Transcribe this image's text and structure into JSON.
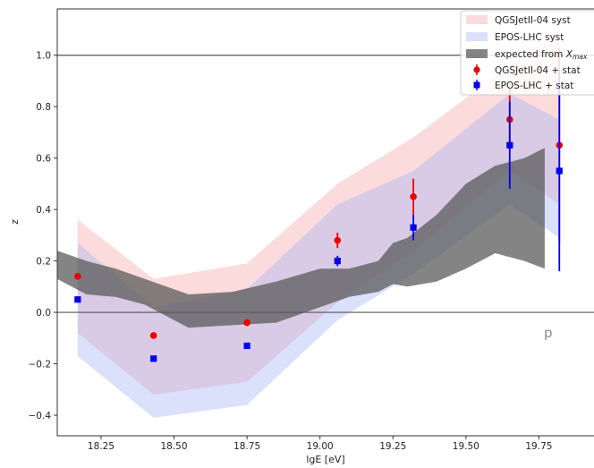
{
  "chart_data": {
    "type": "scatter",
    "xlabel": "lgE [eV]",
    "ylabel": "z",
    "xlim": [
      18.1,
      20.0
    ],
    "ylim": [
      -0.48,
      1.18
    ],
    "x_ticks": [
      "18.25",
      "18.50",
      "18.75",
      "19.00",
      "19.25",
      "19.50",
      "19.75"
    ],
    "y_ticks": [
      "−0.4",
      "−0.2",
      "0.0",
      "0.2",
      "0.4",
      "0.6",
      "0.8",
      "1.0"
    ],
    "grid": false,
    "legend": "top-right",
    "reference_lines": [
      1.0,
      0.0
    ],
    "annotation": "p",
    "bands": [
      {
        "name": "QGSJetII-04 syst",
        "color": "#f5aaaa",
        "x": [
          18.17,
          18.43,
          18.75,
          19.06,
          19.32,
          19.65,
          19.82
        ],
        "upper": [
          0.36,
          0.13,
          0.19,
          0.5,
          0.68,
          0.96,
          1.1
        ],
        "lower": [
          -0.08,
          -0.32,
          -0.27,
          0.04,
          0.24,
          0.55,
          0.42
        ]
      },
      {
        "name": "EPOS-LHC syst",
        "color": "#aab4f5",
        "x": [
          18.17,
          18.43,
          18.75,
          19.06,
          19.32,
          19.65,
          19.82
        ],
        "upper": [
          0.27,
          0.02,
          0.09,
          0.42,
          0.55,
          0.85,
          0.75
        ],
        "lower": [
          -0.17,
          -0.41,
          -0.36,
          -0.03,
          0.15,
          0.42,
          0.29
        ]
      },
      {
        "name": "expected from X_max",
        "label_text": "expected from ",
        "label_math": "X",
        "label_sub": "max",
        "color": "#555555",
        "x": [
          18.1,
          18.2,
          18.3,
          18.4,
          18.55,
          18.7,
          18.85,
          19.0,
          19.1,
          19.2,
          19.25,
          19.3,
          19.4,
          19.5,
          19.6,
          19.7,
          19.77
        ],
        "upper": [
          0.24,
          0.2,
          0.17,
          0.13,
          0.07,
          0.08,
          0.12,
          0.17,
          0.17,
          0.2,
          0.27,
          0.29,
          0.38,
          0.5,
          0.57,
          0.6,
          0.64
        ],
        "lower": [
          0.13,
          0.07,
          0.06,
          0.03,
          -0.06,
          -0.05,
          -0.04,
          0.02,
          0.06,
          0.08,
          0.11,
          0.1,
          0.12,
          0.17,
          0.23,
          0.2,
          0.17
        ]
      }
    ],
    "series": [
      {
        "name": "QGSJetII-04 + stat",
        "color": "#ee0000",
        "marker": "circle",
        "x": [
          18.17,
          18.43,
          18.75,
          19.06,
          19.32,
          19.65,
          19.82
        ],
        "y": [
          0.14,
          -0.09,
          -0.04,
          0.28,
          0.45,
          0.75,
          0.65
        ],
        "err": [
          0.01,
          0.01,
          0.01,
          0.03,
          0.07,
          0.12,
          0.38
        ]
      },
      {
        "name": "EPOS-LHC + stat",
        "color": "#0000ee",
        "marker": "square",
        "x": [
          18.17,
          18.43,
          18.75,
          19.06,
          19.32,
          19.65,
          19.82
        ],
        "y": [
          0.05,
          -0.18,
          -0.13,
          0.2,
          0.33,
          0.65,
          0.55
        ],
        "err": [
          0.01,
          0.01,
          0.01,
          0.02,
          0.05,
          0.17,
          0.39
        ]
      }
    ]
  }
}
